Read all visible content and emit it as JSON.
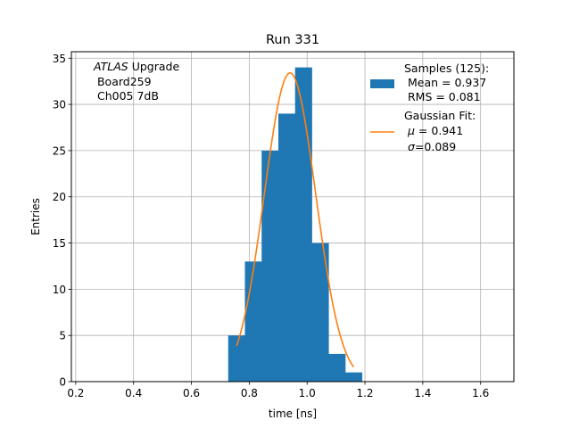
{
  "chart_data": {
    "type": "bar",
    "title": "Run 331",
    "xlabel": "time [ns]",
    "ylabel": "Entries",
    "xlim": [
      0.185,
      1.715
    ],
    "ylim": [
      0,
      35.7
    ],
    "x_ticks": [
      0.2,
      0.4,
      0.6,
      0.8,
      1.0,
      1.2,
      1.4,
      1.6
    ],
    "y_ticks": [
      0,
      5,
      10,
      15,
      20,
      25,
      30,
      35
    ],
    "grid": true,
    "bar_color": "#1f77b4",
    "fit_color": "#ff7f0e",
    "histogram": {
      "bin_edges": [
        0.7272,
        0.785,
        0.8428,
        0.9006,
        0.9584,
        1.0162,
        1.074,
        1.1318,
        1.1896
      ],
      "counts": [
        5,
        13,
        25,
        29,
        34,
        15,
        3,
        1
      ]
    },
    "gaussian_fit": {
      "amplitude": 33.4,
      "mu": 0.941,
      "sigma": 0.089,
      "x_range": [
        0.7561,
        1.1607
      ]
    },
    "annotation": {
      "line1_italic": "ATLAS",
      "line1_rest": " Upgrade",
      "line2": " Board259",
      "line3": " Ch005 7dB"
    },
    "legend": {
      "location": "top-right",
      "entries": [
        {
          "kind": "bar",
          "lines": [
            "Samples (125):",
            " Mean = 0.937",
            " RMS = 0.081"
          ]
        },
        {
          "kind": "line",
          "title": "Gaussian Fit:",
          "mu_symbol": "μ",
          "mu_text": " = 0.941",
          "sigma_symbol": "σ",
          "sigma_text": "=0.089"
        }
      ]
    }
  }
}
